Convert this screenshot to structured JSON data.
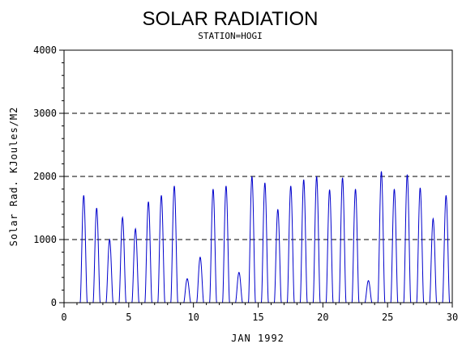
{
  "chart_data": {
    "type": "line",
    "title": "SOLAR RADIATION",
    "subtitle": "STATION=HOGI",
    "xlabel": "JAN 1992",
    "ylabel": "Solar Rad. KJoules/M2",
    "xlim": [
      0,
      30
    ],
    "ylim": [
      0,
      4000
    ],
    "x_ticks": [
      0,
      5,
      10,
      15,
      20,
      25,
      30
    ],
    "x_tick_labels": [
      "0",
      "5",
      "10",
      "15",
      "20",
      "25",
      "30"
    ],
    "y_ticks": [
      0,
      1000,
      2000,
      3000,
      4000
    ],
    "y_tick_labels": [
      "0",
      "1000",
      "2000",
      "3000",
      "4000"
    ],
    "grid": "horizontal dashed",
    "line_color": "#0000cc",
    "daily_peaks": [
      {
        "day": 1,
        "peak": 1700
      },
      {
        "day": 2,
        "peak": 1500
      },
      {
        "day": 3,
        "peak": 1000
      },
      {
        "day": 4,
        "peak": 1350
      },
      {
        "day": 5,
        "peak": 1170
      },
      {
        "day": 6,
        "peak": 1600
      },
      {
        "day": 7,
        "peak": 1700
      },
      {
        "day": 8,
        "peak": 1850
      },
      {
        "day": 9,
        "peak": 380
      },
      {
        "day": 10,
        "peak": 720
      },
      {
        "day": 11,
        "peak": 1800
      },
      {
        "day": 12,
        "peak": 1850
      },
      {
        "day": 13,
        "peak": 480
      },
      {
        "day": 14,
        "peak": 2000
      },
      {
        "day": 15,
        "peak": 1900
      },
      {
        "day": 16,
        "peak": 1480
      },
      {
        "day": 17,
        "peak": 1850
      },
      {
        "day": 18,
        "peak": 1950
      },
      {
        "day": 19,
        "peak": 2000
      },
      {
        "day": 20,
        "peak": 1790
      },
      {
        "day": 21,
        "peak": 1980
      },
      {
        "day": 22,
        "peak": 1800
      },
      {
        "day": 23,
        "peak": 350
      },
      {
        "day": 24,
        "peak": 2080
      },
      {
        "day": 25,
        "peak": 1800
      },
      {
        "day": 26,
        "peak": 2030
      },
      {
        "day": 27,
        "peak": 1820
      },
      {
        "day": 28,
        "peak": 1330
      },
      {
        "day": 29,
        "peak": 1700
      }
    ]
  }
}
